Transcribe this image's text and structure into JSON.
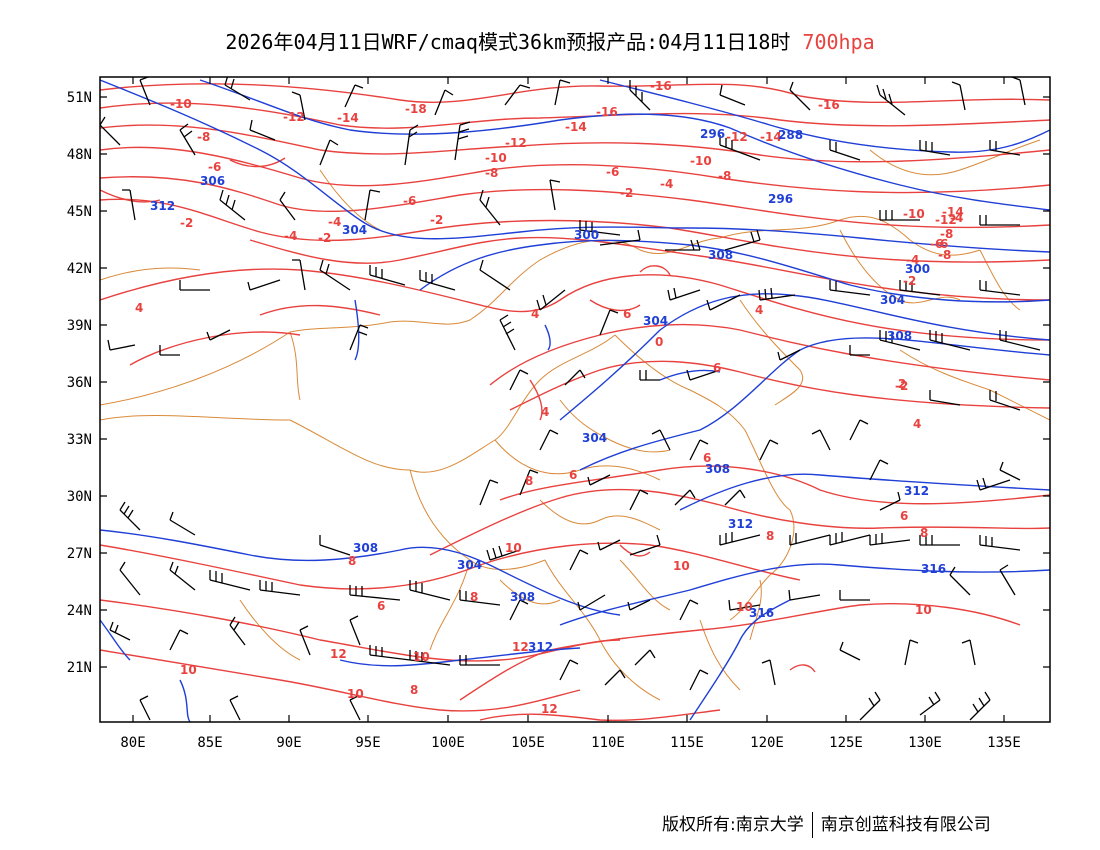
{
  "title": {
    "main": "2026年04月11日WRF/cmaq模式36km预报产品:04月11日18时",
    "level": "700hpa"
  },
  "axes": {
    "x_ticks": [
      "80E",
      "85E",
      "90E",
      "95E",
      "100E",
      "105E",
      "110E",
      "115E",
      "120E",
      "125E",
      "130E",
      "135E"
    ],
    "y_ticks": [
      "51N",
      "48N",
      "45N",
      "42N",
      "39N",
      "36N",
      "33N",
      "30N",
      "27N",
      "24N",
      "21N"
    ]
  },
  "colors": {
    "temperature_contour": "#e8423f",
    "geopotential_contour": "#1f3fd6",
    "boundary": "#d98a3a",
    "wind_barb": "#000000"
  },
  "temperature_labels": [
    "-10",
    "-12",
    "-14",
    "-16",
    "-18",
    "-16",
    "-16",
    "-14",
    "-8",
    "-10",
    "-12",
    "-12",
    "-14",
    "-6",
    "-8",
    "-10",
    "-8",
    "-6",
    "-4",
    "-2",
    "-6",
    "-4",
    "-2",
    "-2",
    "-4",
    "-2",
    "-4",
    "-6",
    "-8",
    "-10",
    "-12",
    "-14",
    "-8",
    "-6",
    "-4",
    "-2",
    "-2",
    "4",
    "4",
    "6",
    "0",
    "4",
    "6",
    "2",
    "4",
    "4",
    "6",
    "6",
    "8",
    "8",
    "6",
    "8",
    "10",
    "10",
    "10",
    "10",
    "8",
    "6",
    "10",
    "10",
    "12",
    "12",
    "10",
    "12",
    "8",
    "8"
  ],
  "height_labels": [
    "306",
    "312",
    "304",
    "296",
    "288",
    "296",
    "300",
    "308",
    "300",
    "304",
    "304",
    "308",
    "304",
    "308",
    "312",
    "308",
    "312",
    "304",
    "308",
    "316",
    "316",
    "312"
  ],
  "footer": {
    "copyright": "版权所有:南京大学",
    "company": "南京创蓝科技有限公司"
  }
}
